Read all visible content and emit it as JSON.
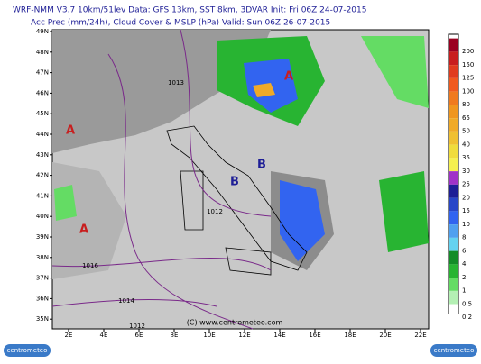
{
  "header": {
    "line1": "WRF-NMM V3.7 10km/51lev   Data: GFS 13km, SST 8km, 3DVAR   Init: Fri 06Z 24-07-2015",
    "line2": "Acc Prec (mm/24h), Cloud Cover & MSLP (hPa)   Valid: Sun 06Z 26-07-2015"
  },
  "map": {
    "lat_labels": [
      "49N",
      "48N",
      "47N",
      "46N",
      "45N",
      "44N",
      "43N",
      "42N",
      "41N",
      "40N",
      "39N",
      "38N",
      "37N",
      "36N",
      "35N"
    ],
    "lon_labels": [
      "2E",
      "4E",
      "6E",
      "8E",
      "10E",
      "12E",
      "14E",
      "16E",
      "18E",
      "20E",
      "22E"
    ],
    "isobar_labels": [
      "1013",
      "1012",
      "1016",
      "1014",
      "1012"
    ],
    "pressure_centers": [
      "A",
      "A",
      "A",
      "B",
      "B"
    ]
  },
  "colorbar": {
    "labels": [
      "200",
      "150",
      "125",
      "100",
      "80",
      "65",
      "50",
      "40",
      "35",
      "30",
      "25",
      "20",
      "15",
      "10",
      "8",
      "6",
      "4",
      "2",
      "1",
      "0.5",
      "0.2"
    ],
    "colors": [
      "#9a0020",
      "#c81e1e",
      "#e03c1e",
      "#f05a1e",
      "#f07a1e",
      "#f0961e",
      "#f0aa28",
      "#f0c032",
      "#f0dc3c",
      "#f5f050",
      "#a032c8",
      "#1e1e96",
      "#2846c8",
      "#3264f0",
      "#50a0f0",
      "#64d2f0",
      "#148c28",
      "#28b432",
      "#64dc64",
      "#b4f0b4",
      "#ffffff"
    ]
  },
  "footer": {
    "copyright": "(C) www.centrometeo.com",
    "logo_left": "centrometeo",
    "logo_right": "centrometeo"
  }
}
